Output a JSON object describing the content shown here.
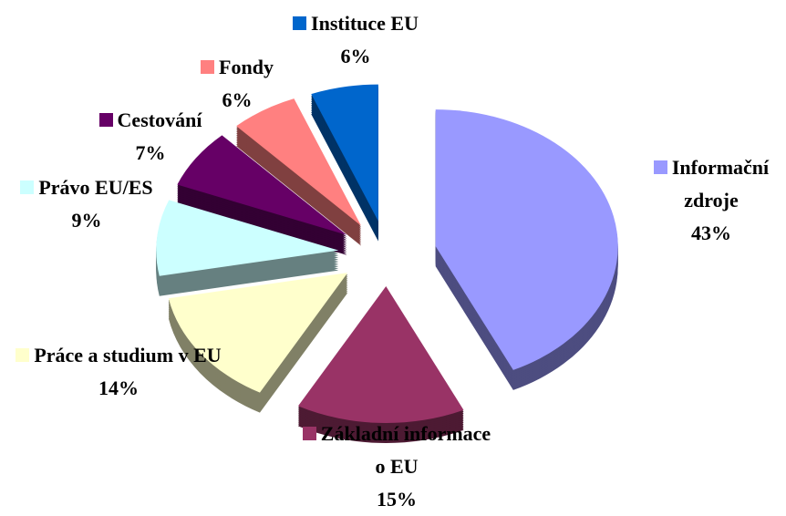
{
  "chart_data": {
    "type": "pie",
    "categories": [
      "Informační zdroje",
      "Základní informace o EU",
      "Práce a studium v EU",
      "Právo EU/ES",
      "Cestování",
      "Fondy",
      "Instituce EU"
    ],
    "values": [
      43,
      15,
      14,
      9,
      7,
      6,
      6
    ],
    "value_labels": [
      "43%",
      "15%",
      "14%",
      "9%",
      "7%",
      "6%",
      "6%"
    ],
    "colors": [
      "#9999ff",
      "#993366",
      "#ffffcc",
      "#ccffff",
      "#660066",
      "#ff8080",
      "#0066cc"
    ]
  }
}
